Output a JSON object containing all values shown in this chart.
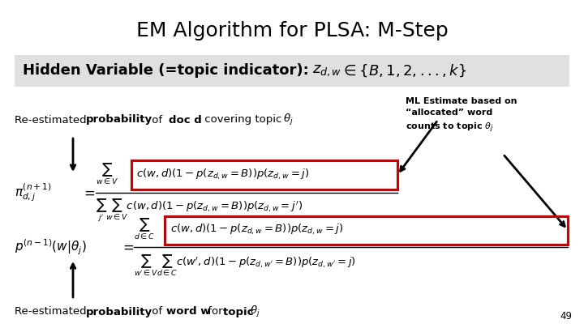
{
  "title": "EM Algorithm for PLSA: M-Step",
  "title_fontsize": 18,
  "bg_color": "#ffffff",
  "hidden_var_box_color": "#e0e0e0",
  "hidden_var_fontsize": 13,
  "ml_estimate_text": "ML Estimate based on\n“allocated” word\ncounts to topic $\\theta_j$",
  "red_box_color": "#cc0000",
  "page_number": "49",
  "arrow_color": "#000000",
  "label_fontsize": 9.5,
  "formula_fontsize": 9.5
}
